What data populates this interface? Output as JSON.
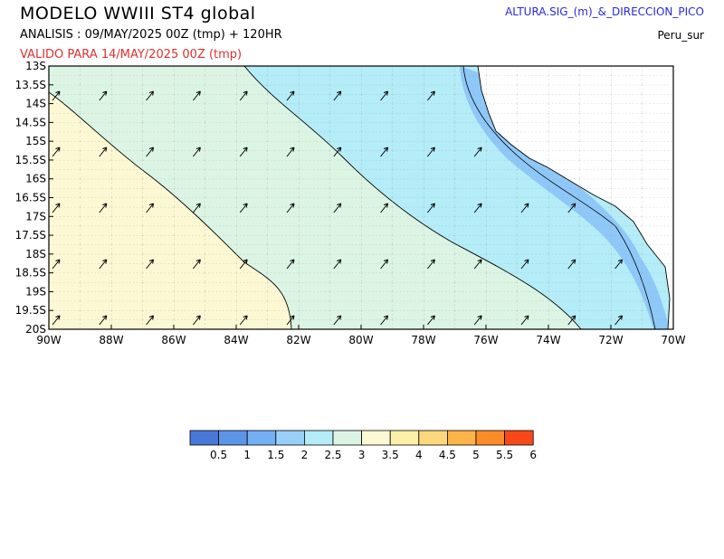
{
  "header": {
    "title": "MODELO WWIII ST4 global",
    "analysis": "ANALISIS : 09/MAY/2025 00Z  (tmp) + 120HR",
    "valid": "VALIDO PARA  14/MAY/2025 00Z  (tmp)",
    "variable": "ALTURA.SIG_(m)_&_DIRECCION_PICO",
    "region": "Peru_sur"
  },
  "map": {
    "lat_labels": [
      "13S",
      "13.5S",
      "14S",
      "14.5S",
      "15S",
      "15.5S",
      "16S",
      "16.5S",
      "17S",
      "17.5S",
      "18S",
      "18.5S",
      "19S",
      "19.5S",
      "20S"
    ],
    "lon_labels": [
      "90W",
      "88W",
      "86W",
      "84W",
      "82W",
      "80W",
      "78W",
      "76W",
      "74W",
      "72W",
      "70W"
    ],
    "colors": {
      "land": "#ffffff",
      "h_1_5": "#8ec8f8",
      "h_2_2_5": "#b4ecf8",
      "h_2_5_3": "#dcf4e4",
      "h_3_3_5": "#fcf8d4"
    }
  },
  "colorbar": {
    "labels": [
      "0.5",
      "1",
      "1.5",
      "2",
      "2.5",
      "3",
      "3.5",
      "4",
      "4.5",
      "5",
      "5.5",
      "6"
    ],
    "colors": [
      "#4878d8",
      "#5c94e8",
      "#74b0f4",
      "#98d0f8",
      "#b4ecf8",
      "#dcf4e4",
      "#fcf8d4",
      "#fcf0a8",
      "#fcd87c",
      "#fcb448",
      "#fc8c28",
      "#f84818"
    ]
  }
}
